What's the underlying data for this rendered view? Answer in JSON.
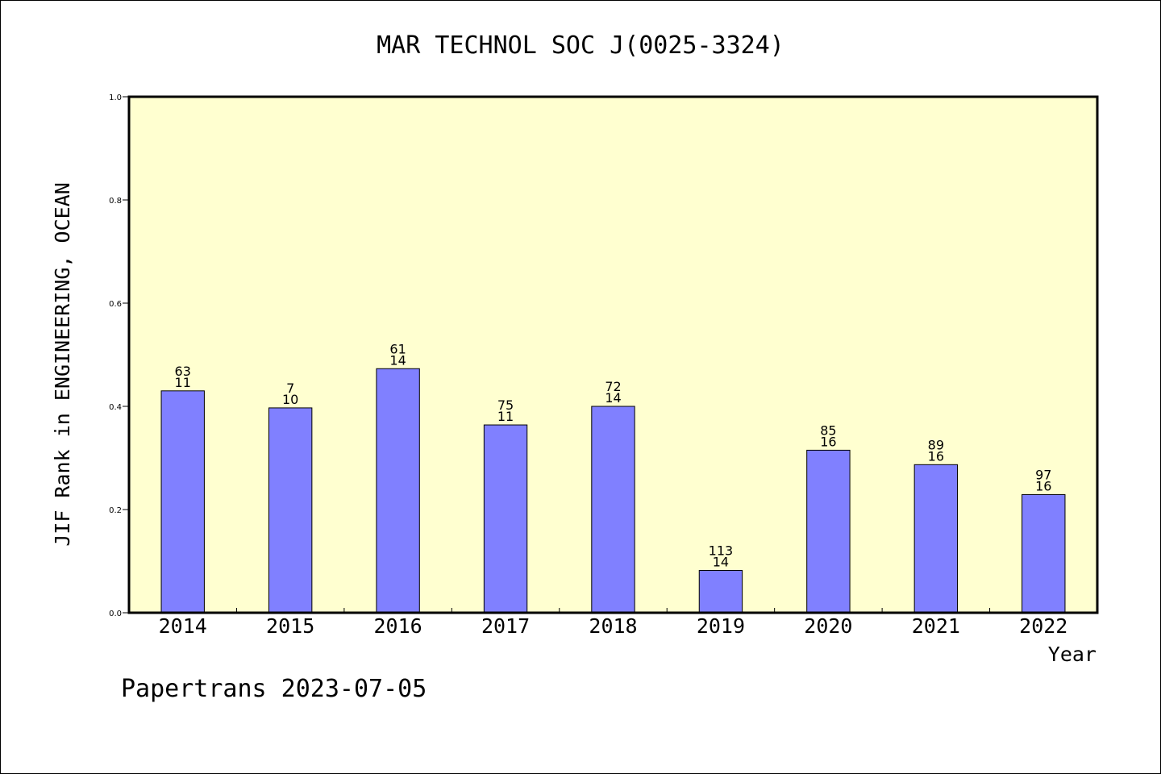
{
  "chart_data": {
    "type": "bar",
    "title": "MAR TECHNOL SOC J(0025-3324)",
    "xlabel": "Year",
    "ylabel": "JIF Rank in ENGINEERING, OCEAN",
    "ylim": [
      0,
      1.0
    ],
    "yticks": [
      "0.0",
      "0.2",
      "0.4",
      "0.6",
      "0.8",
      "1.0"
    ],
    "categories": [
      "2014",
      "2015",
      "2016",
      "2017",
      "2018",
      "2019",
      "2020",
      "2021",
      "2022"
    ],
    "values": [
      0.43,
      0.397,
      0.473,
      0.364,
      0.4,
      0.082,
      0.315,
      0.287,
      0.229
    ],
    "label_top": [
      "63",
      "7",
      "61",
      "75",
      "72",
      "113",
      "85",
      "89",
      "97"
    ],
    "label_bottom": [
      "11",
      "10",
      "14",
      "11",
      "14",
      "14",
      "16",
      "16",
      "16"
    ],
    "colors": {
      "bar": "#8080ff",
      "plot_bg": "#ffffd0",
      "axis": "#000000"
    },
    "grid": false,
    "legend": "none"
  },
  "footer": "Papertrans 2023-07-05"
}
